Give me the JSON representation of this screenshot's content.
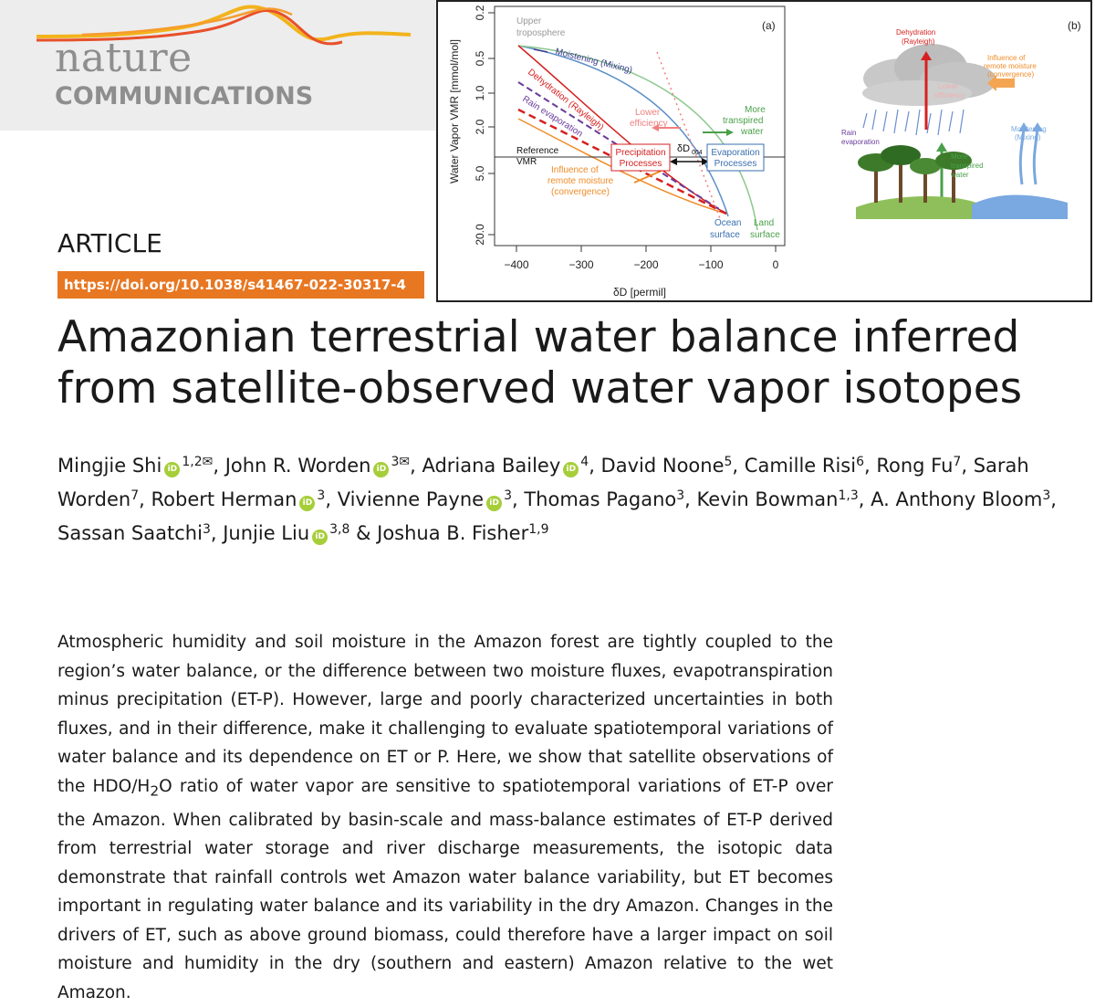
{
  "journal": {
    "name_line1": "nature",
    "name_line2": "COMMUNICATIONS"
  },
  "article_type": "ARTICLE",
  "doi": "https://doi.org/10.1038/s41467-022-30317-4",
  "title": "Amazonian terrestrial water balance inferred from satellite-observed water vapor isotopes",
  "authors": [
    {
      "name": "Mingjie Shi",
      "orcid": true,
      "aff": "1,2✉"
    },
    {
      "name": "John R. Worden",
      "orcid": true,
      "aff": "3✉"
    },
    {
      "name": "Adriana Bailey",
      "orcid": true,
      "aff": "4"
    },
    {
      "name": "David Noone",
      "orcid": false,
      "aff": "5"
    },
    {
      "name": "Camille Risi",
      "orcid": false,
      "aff": "6"
    },
    {
      "name": "Rong Fu",
      "orcid": false,
      "aff": "7"
    },
    {
      "name": "Sarah Worden",
      "orcid": false,
      "aff": "7"
    },
    {
      "name": "Robert Herman",
      "orcid": true,
      "aff": "3"
    },
    {
      "name": "Vivienne Payne",
      "orcid": true,
      "aff": "3"
    },
    {
      "name": "Thomas Pagano",
      "orcid": false,
      "aff": "3"
    },
    {
      "name": "Kevin Bowman",
      "orcid": false,
      "aff": "1,3"
    },
    {
      "name": "A. Anthony Bloom",
      "orcid": false,
      "aff": "3"
    },
    {
      "name": "Sassan Saatchi",
      "orcid": false,
      "aff": "3"
    },
    {
      "name": "Junjie Liu",
      "orcid": true,
      "aff": "3,8"
    },
    {
      "name": "Joshua B. Fisher",
      "orcid": false,
      "aff": "1,9"
    }
  ],
  "abstract": {
    "part1": "Atmospheric humidity and soil moisture in the Amazon forest are tightly coupled to the region’s water balance, or the difference between two moisture fluxes, evapotranspiration minus precipitation (ET-P). However, large and poorly characterized uncertainties in both fluxes, and in their difference, make it challenging to evaluate spatiotemporal variations of water balance and its dependence on ET or P. Here, we show that satellite observations of the HDO/H",
    "sub": "2",
    "part2": "O ratio of water vapor are sensitive to spatiotemporal variations of ET-P over the Amazon. When calibrated by basin-scale and mass-balance estimates of ET-P derived from terrestrial water storage and river discharge measurements, the isotopic data demonstrate that rainfall controls wet Amazon water balance variability, but ET becomes important in regulating water balance and its variability in the dry Amazon. Changes in the drivers of ET, such as above ground biomass, could therefore have a larger impact on soil moisture and humidity in the dry (southern and eastern) Amazon relative to the wet Amazon."
  },
  "figure": {
    "panel_a_label": "(a)",
    "panel_b_label": "(b)",
    "xlabel": "δD [permil]",
    "ylabel": "Water Vapor VMR [mmol/mol]",
    "xticks": [
      "−400",
      "−300",
      "−200",
      "−100",
      "0"
    ],
    "yticks": [
      "0.2",
      "0.5",
      "1.0",
      "2.0",
      "5.0",
      "20.0"
    ],
    "labels_a": {
      "upper": "Upper",
      "troposphere": "troposphere",
      "moistening": "Moistening (Mixing)",
      "dehydration": "Dehydration (Rayleigh)",
      "rain_evap": "Rain evaporation",
      "lower": "Lower",
      "efficiency": "efficiency",
      "more": "More",
      "transpired": "transpired",
      "water": "water",
      "reference": "Reference",
      "vmr": "VMR",
      "precip_1": "Precipitation",
      "precip_2": "Processes",
      "evap_1": "Evaporation",
      "evap_2": "Processes",
      "dd": "δD",
      "dd_sub": "004",
      "influence_1": "Influence of",
      "influence_2": "remote moisture",
      "influence_3": "(convergence)",
      "ocean_1": "Ocean",
      "ocean_2": "surface",
      "land_1": "Land",
      "land_2": "surface"
    },
    "labels_b": {
      "dehyd_1": "Dehydration",
      "dehyd_2": "(Rayleigh)",
      "infl_1": "Influence of",
      "infl_2": "remote moisture",
      "infl_3": "(convergence)",
      "lower_1": "Lower",
      "lower_2": "efficiency",
      "moist_1": "Moistening",
      "moist_2": "(Mixing)",
      "rain_1": "Rain",
      "rain_2": "evaporation",
      "more_1": "More",
      "more_2": "transpired",
      "more_3": "water"
    },
    "colors": {
      "moistening": "#3b3b8f",
      "dehydration": "#d62020",
      "rain_evap": "#6a3d9a",
      "influence": "#f08c28",
      "mixing_curve": "#5a8fc8",
      "transpired": "#4aa04a",
      "lower_eff": "#f08080"
    }
  }
}
